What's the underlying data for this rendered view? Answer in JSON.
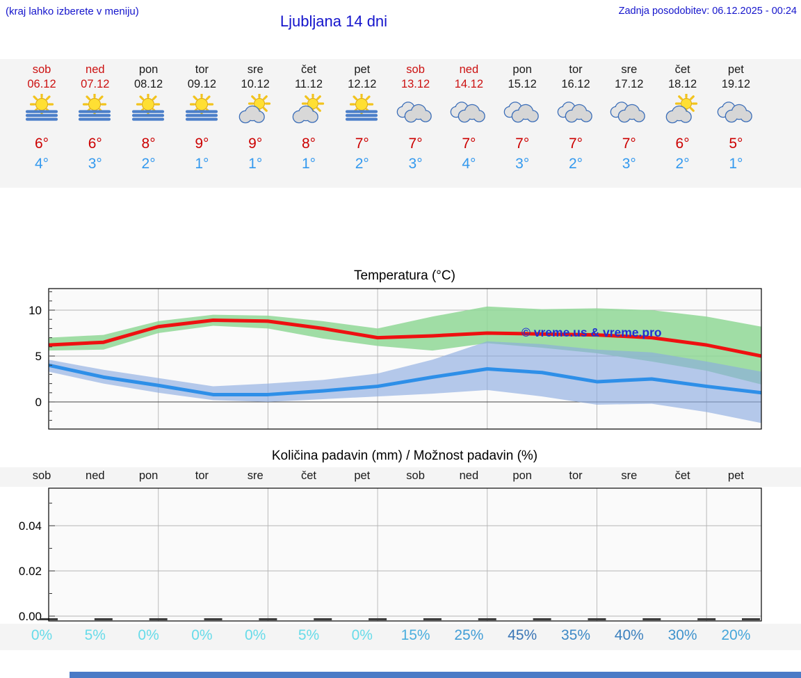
{
  "header": {
    "hint": "(kraj lahko izberete v meniju)",
    "title": "Ljubljana 14 dni",
    "updated": "Zadnja posodobitev: 06.12.2025 - 00:24"
  },
  "colors": {
    "header_blue": "#1414cc",
    "weekend_red": "#cc1111",
    "tmax_red": "#cc0000",
    "tmin_blue": "#3399ee",
    "strip_bg": "#f4f4f4",
    "plot_bg": "#fafafa",
    "grid_gray": "#bbbbbb",
    "footer_bar": "#4a7ac6"
  },
  "forecast": {
    "days": [
      {
        "name": "sob",
        "date": "06.12",
        "weekend": true,
        "icon": "sun-fog",
        "tmax": "6°",
        "tmin": "4°"
      },
      {
        "name": "ned",
        "date": "07.12",
        "weekend": true,
        "icon": "sun-fog",
        "tmax": "6°",
        "tmin": "3°"
      },
      {
        "name": "pon",
        "date": "08.12",
        "weekend": false,
        "icon": "sun-fog",
        "tmax": "8°",
        "tmin": "2°"
      },
      {
        "name": "tor",
        "date": "09.12",
        "weekend": false,
        "icon": "sun-fog",
        "tmax": "9°",
        "tmin": "1°"
      },
      {
        "name": "sre",
        "date": "10.12",
        "weekend": false,
        "icon": "sun-cloud",
        "tmax": "9°",
        "tmin": "1°"
      },
      {
        "name": "čet",
        "date": "11.12",
        "weekend": false,
        "icon": "sun-cloud",
        "tmax": "8°",
        "tmin": "1°"
      },
      {
        "name": "pet",
        "date": "12.12",
        "weekend": false,
        "icon": "sun-fog",
        "tmax": "7°",
        "tmin": "2°"
      },
      {
        "name": "sob",
        "date": "13.12",
        "weekend": true,
        "icon": "cloudy",
        "tmax": "7°",
        "tmin": "3°"
      },
      {
        "name": "ned",
        "date": "14.12",
        "weekend": true,
        "icon": "cloudy",
        "tmax": "7°",
        "tmin": "4°"
      },
      {
        "name": "pon",
        "date": "15.12",
        "weekend": false,
        "icon": "cloudy",
        "tmax": "7°",
        "tmin": "3°"
      },
      {
        "name": "tor",
        "date": "16.12",
        "weekend": false,
        "icon": "cloudy",
        "tmax": "7°",
        "tmin": "2°"
      },
      {
        "name": "sre",
        "date": "17.12",
        "weekend": false,
        "icon": "cloudy",
        "tmax": "7°",
        "tmin": "3°"
      },
      {
        "name": "čet",
        "date": "18.12",
        "weekend": false,
        "icon": "sun-cloud",
        "tmax": "6°",
        "tmin": "2°"
      },
      {
        "name": "pet",
        "date": "19.12",
        "weekend": false,
        "icon": "cloudy",
        "tmax": "5°",
        "tmin": "1°"
      }
    ]
  },
  "chart_data": [
    {
      "type": "line",
      "title": "Temperatura (°C)",
      "categories": [
        "sob 06.12",
        "ned 07.12",
        "pon 08.12",
        "tor 09.12",
        "sre 10.12",
        "čet 11.12",
        "pet 12.12",
        "sob 13.12",
        "ned 14.12",
        "pon 15.12",
        "tor 16.12",
        "sre 17.12",
        "čet 18.12",
        "pet 19.12"
      ],
      "yticks": [
        0,
        5,
        10
      ],
      "ylim": [
        -2.9,
        12.3
      ],
      "grid": true,
      "watermark": "© vreme.us & vreme.pro",
      "series": [
        {
          "name": "tmax",
          "color": "#ee1111",
          "values": [
            6.2,
            6.5,
            8.2,
            8.9,
            8.8,
            8.0,
            7.0,
            7.2,
            7.5,
            7.4,
            7.3,
            7.0,
            6.2,
            5.0
          ]
        },
        {
          "name": "tmin",
          "color": "#2e8fe8",
          "values": [
            4.0,
            2.7,
            1.8,
            0.8,
            0.8,
            1.2,
            1.7,
            2.7,
            3.6,
            3.2,
            2.2,
            2.5,
            1.7,
            1.0
          ]
        },
        {
          "name": "tmax_range_high",
          "color": "#9bdb9e",
          "values": [
            7.0,
            7.3,
            8.8,
            9.5,
            9.4,
            8.8,
            8.0,
            9.3,
            10.4,
            10.1,
            10.2,
            10.0,
            9.3,
            8.2
          ]
        },
        {
          "name": "tmax_range_low",
          "color": "#9bdb9e",
          "values": [
            5.6,
            5.7,
            7.5,
            8.3,
            8.0,
            6.9,
            6.1,
            5.6,
            6.4,
            5.9,
            5.3,
            4.4,
            3.4,
            1.9
          ]
        },
        {
          "name": "tmin_range_high",
          "color": "#8fb0e2",
          "values": [
            4.6,
            3.5,
            2.6,
            1.7,
            2.0,
            2.4,
            3.1,
            4.6,
            6.6,
            6.3,
            5.7,
            5.4,
            4.4,
            3.3
          ]
        },
        {
          "name": "tmin_range_low",
          "color": "#8fb0e2",
          "values": [
            3.3,
            2.0,
            1.0,
            0.2,
            0.0,
            0.3,
            0.6,
            0.9,
            1.3,
            0.6,
            -0.3,
            -0.2,
            -1.1,
            -2.3
          ]
        }
      ]
    },
    {
      "type": "bar",
      "title": "Količina padavin (mm) / Možnost padavin (%)",
      "day_labels": [
        "sob",
        "ned",
        "pon",
        "tor",
        "sre",
        "čet",
        "pet",
        "sob",
        "ned",
        "pon",
        "tor",
        "sre",
        "čet",
        "pet"
      ],
      "yticks": [
        "0.00",
        "0.02",
        "0.04"
      ],
      "ylim": [
        0,
        0.055
      ],
      "values_mm": [
        0,
        0,
        0,
        0,
        0,
        0,
        0,
        0,
        0,
        0,
        0,
        0,
        0,
        0
      ],
      "probabilities": [
        {
          "label": "0%",
          "color": "#67dbe9"
        },
        {
          "label": "5%",
          "color": "#67dbe9"
        },
        {
          "label": "0%",
          "color": "#67dbe9"
        },
        {
          "label": "0%",
          "color": "#67dbe9"
        },
        {
          "label": "0%",
          "color": "#67dbe9"
        },
        {
          "label": "5%",
          "color": "#67dbe9"
        },
        {
          "label": "0%",
          "color": "#67dbe9"
        },
        {
          "label": "15%",
          "color": "#4aaede"
        },
        {
          "label": "25%",
          "color": "#419dd6"
        },
        {
          "label": "45%",
          "color": "#3a75b5"
        },
        {
          "label": "35%",
          "color": "#3d89c6"
        },
        {
          "label": "40%",
          "color": "#3b80be"
        },
        {
          "label": "30%",
          "color": "#3f93cd"
        },
        {
          "label": "20%",
          "color": "#45a6da"
        }
      ]
    }
  ],
  "footer": {
    "bar_color": "#4a7ac6"
  }
}
